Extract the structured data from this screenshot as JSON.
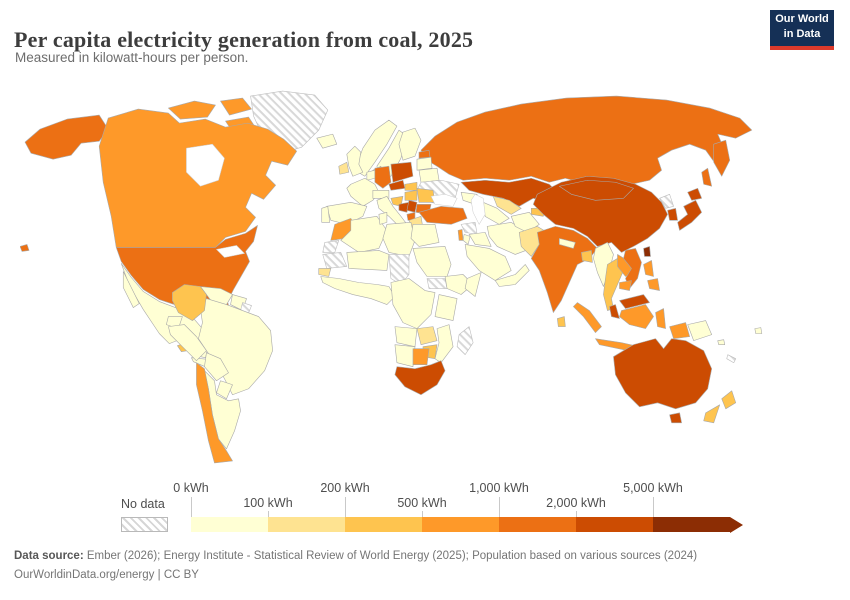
{
  "header": {
    "title": "Per capita electricity generation from coal, 2025",
    "subtitle": "Measured in kilowatt-hours per person."
  },
  "logo": {
    "line1": "Our World",
    "line2": "in Data",
    "bg_color": "#153056",
    "accent_color": "#dc3a2b"
  },
  "chart_data": {
    "type": "choropleth",
    "title": "Per capita electricity generation from coal, 2025",
    "subtitle": "Measured in kilowatt-hours per person.",
    "unit": "kWh per person",
    "legend": {
      "no_data_label": "No data",
      "tick_labels": [
        "0 kWh",
        "100 kWh",
        "200 kWh",
        "500 kWh",
        "1,000 kWh",
        "2,000 kWh",
        "5,000 kWh"
      ]
    },
    "bins": [
      {
        "key": "0-100",
        "label": "0 kWh",
        "color": "#ffffd4"
      },
      {
        "key": "100-200",
        "label": "100 kWh",
        "color": "#fee391"
      },
      {
        "key": "200-500",
        "label": "200 kWh",
        "color": "#fec44f"
      },
      {
        "key": "500-1000",
        "label": "500 kWh",
        "color": "#fe9929"
      },
      {
        "key": "1000-2000",
        "label": "1,000 kWh",
        "color": "#ec7014"
      },
      {
        "key": "2000-5000",
        "label": "2,000 kWh",
        "color": "#cc4c02"
      },
      {
        "key": "5000+",
        "label": "5,000 kWh",
        "color": "#8c2d04"
      }
    ],
    "no_data": {
      "label": "No data",
      "pattern": "diagonal-hatch"
    },
    "countries": {
      "usa": "1000-2000",
      "canada": "500-1000",
      "greenland": "no-data",
      "iceland": "0-100",
      "mexico": "0-100",
      "guatemala": "200-500",
      "honduras-nicaragua": "0-100",
      "costa-rica-panama": "0-100",
      "cuba": "0-100",
      "dominican-republic": "1000-2000",
      "colombia": "200-500",
      "venezuela": "0-100",
      "guyana-suriname": "0-100",
      "french-guiana": "no-data",
      "ecuador": "0-100",
      "peru": "0-100",
      "brazil": "0-100",
      "bolivia": "0-100",
      "paraguay": "0-100",
      "chile": "500-1000",
      "argentina": "0-100",
      "norway": "0-100",
      "sweden": "0-100",
      "finland": "0-100",
      "estonia": "1000-2000",
      "latvia-lithuania": "0-100",
      "belarus": "0-100",
      "denmark": "500-1000",
      "uk": "0-100",
      "ireland": "100-200",
      "benelux": "0-100",
      "germany": "1000-2000",
      "france": "0-100",
      "spain": "0-100",
      "portugal": "0-100",
      "poland": "2000-5000",
      "czechia": "2000-5000",
      "slovakia": "200-500",
      "austria-switzerland": "0-100",
      "hungary": "200-500",
      "romania": "200-500",
      "italy": "0-100",
      "slovenia-croatia": "200-500",
      "bosnia": "2000-5000",
      "serbia": "2000-5000",
      "albania-macedonia": "1000-2000",
      "bulgaria": "1000-2000",
      "greece": "100-200",
      "ukraine": "no-data",
      "russia": "1000-2000",
      "kazakhstan": "2000-5000",
      "uzbekistan": "100-200",
      "turkmenistan": "0-100",
      "kyrgyzstan": "200-500",
      "tajikistan": "200-500",
      "caucasus": "0-100",
      "turkey": "1000-2000",
      "syria": "no-data",
      "iraq": "0-100",
      "iran": "0-100",
      "israel": "500-1000",
      "jordan": "0-100",
      "saudi-arabia": "0-100",
      "yemen-oman": "0-100",
      "afghanistan": "0-100",
      "pakistan": "100-200",
      "india": "1000-2000",
      "nepal": "0-100",
      "bangladesh": "200-500",
      "sri-lanka": "200-500",
      "myanmar": "0-100",
      "thailand": "200-500",
      "laos": "500-1000",
      "vietnam": "1000-2000",
      "cambodia": "500-1000",
      "malaysia": "2000-5000",
      "indonesia": "500-1000",
      "papua-new-guinea": "0-100",
      "philippines": "500-1000",
      "taiwan": "5000+",
      "china": "2000-5000",
      "mongolia": "2000-5000",
      "north-korea": "no-data",
      "south-korea": "2000-5000",
      "japan": "2000-5000",
      "morocco": "500-1000",
      "western-sahara": "no-data",
      "mauritania": "no-data",
      "algeria": "0-100",
      "tunisia": "0-100",
      "libya": "0-100",
      "egypt": "0-100",
      "mali-niger": "0-100",
      "chad": "no-data",
      "sudan": "0-100",
      "south-sudan": "no-data",
      "senegal": "100-200",
      "west-africa": "0-100",
      "ethiopia": "0-100",
      "somalia": "0-100",
      "central-africa": "0-100",
      "kenya-tanzania": "0-100",
      "angola": "0-100",
      "zambia": "100-200",
      "zimbabwe": "200-500",
      "mozambique": "0-100",
      "namibia": "0-100",
      "botswana": "500-1000",
      "south-africa": "2000-5000",
      "madagascar": "no-data",
      "australia": "2000-5000",
      "new-zealand": "200-500",
      "new-caledonia": "no-data",
      "fiji": "0-100",
      "solomon-islands": "0-100"
    }
  },
  "footer": {
    "source_label": "Data source:",
    "source_text": " Ember (2026); Energy Institute - Statistical Review of World Energy (2025); Population based on various sources (2024)",
    "link": "OurWorldinData.org/energy",
    "separator": " | ",
    "license": "CC BY"
  }
}
